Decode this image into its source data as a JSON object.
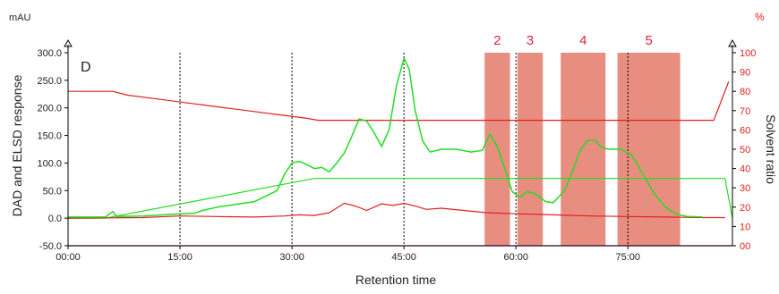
{
  "chart_data": {
    "type": "line",
    "panel_label": "D",
    "xlabel": "Retention time",
    "ylabel_left": "DAD and ELSD response",
    "ylabel_right": "Solvent ratio",
    "unit_left": "mAU",
    "unit_right": "%",
    "xlim_min": [
      0,
      89
    ],
    "ylim_left": [
      -50,
      300
    ],
    "ylim_right": [
      0,
      100
    ],
    "x_ticks": [
      {
        "min": 0,
        "label": "00:00"
      },
      {
        "min": 15,
        "label": "15:00"
      },
      {
        "min": 30,
        "label": "30:00"
      },
      {
        "min": 45,
        "label": "45:00"
      },
      {
        "min": 60,
        "label": "60:00"
      },
      {
        "min": 75,
        "label": "75:00"
      }
    ],
    "y_left_ticks": [
      {
        "v": 300,
        "label": "300.0"
      },
      {
        "v": 250,
        "label": "250.0"
      },
      {
        "v": 200,
        "label": "200.0"
      },
      {
        "v": 150,
        "label": "150.0"
      },
      {
        "v": 100,
        "label": "100.0"
      },
      {
        "v": 50,
        "label": "50.0"
      },
      {
        "v": 0,
        "label": "0.0"
      },
      {
        "v": -50,
        "label": "-50.0"
      }
    ],
    "y_right_ticks": [
      {
        "v": 100,
        "label": "100"
      },
      {
        "v": 90,
        "label": "90"
      },
      {
        "v": 80,
        "label": "80"
      },
      {
        "v": 70,
        "label": "70"
      },
      {
        "v": 60,
        "label": "60"
      },
      {
        "v": 50,
        "label": "50"
      },
      {
        "v": 40,
        "label": "40"
      },
      {
        "v": 30,
        "label": "30"
      },
      {
        "v": 20,
        "label": "20"
      },
      {
        "v": 10,
        "label": "10"
      },
      {
        "v": 0,
        "label": "00"
      }
    ],
    "vertical_gridlines_min": [
      15,
      30,
      45,
      60,
      75
    ],
    "fractions": [
      {
        "label": "2",
        "start": 55.8,
        "end": 59.2
      },
      {
        "label": "3",
        "start": 60.2,
        "end": 63.6
      },
      {
        "label": "4",
        "start": 66.0,
        "end": 72.0
      },
      {
        "label": "5",
        "start": 73.6,
        "end": 82.0
      }
    ],
    "series": [
      {
        "color": "#e02020",
        "axis": "right",
        "values": [
          [
            0,
            80
          ],
          [
            6,
            80
          ],
          [
            8,
            78
          ],
          [
            12,
            76
          ],
          [
            16,
            74
          ],
          [
            20,
            72
          ],
          [
            24,
            70
          ],
          [
            28,
            68
          ],
          [
            32,
            66
          ],
          [
            33.5,
            65
          ],
          [
            40,
            65
          ],
          [
            60,
            65
          ],
          [
            80,
            65
          ],
          [
            86.5,
            65
          ],
          [
            88.5,
            85
          ]
        ]
      },
      {
        "color": "#22dd22",
        "axis": "left",
        "values": [
          [
            0,
            2
          ],
          [
            5,
            2
          ],
          [
            6,
            12
          ],
          [
            6.5,
            3
          ],
          [
            10,
            4
          ],
          [
            14,
            7
          ],
          [
            17,
            9
          ],
          [
            18,
            14
          ],
          [
            20,
            20
          ],
          [
            22,
            24
          ],
          [
            25,
            30
          ],
          [
            28,
            50
          ],
          [
            29,
            80
          ],
          [
            30,
            100
          ],
          [
            31,
            103
          ],
          [
            32,
            97
          ],
          [
            33,
            90
          ],
          [
            34,
            92
          ],
          [
            35,
            84
          ],
          [
            36,
            100
          ],
          [
            37,
            118
          ],
          [
            38,
            148
          ],
          [
            39,
            180
          ],
          [
            40,
            176
          ],
          [
            41,
            155
          ],
          [
            42,
            130
          ],
          [
            43,
            160
          ],
          [
            44,
            240
          ],
          [
            45,
            290
          ],
          [
            45.7,
            270
          ],
          [
            46.5,
            195
          ],
          [
            47.5,
            140
          ],
          [
            48.5,
            120
          ],
          [
            50,
            125
          ],
          [
            52,
            125
          ],
          [
            54,
            120
          ],
          [
            55.5,
            123
          ],
          [
            56.5,
            152
          ],
          [
            57.5,
            130
          ],
          [
            58.5,
            90
          ],
          [
            59.5,
            48
          ],
          [
            60.5,
            38
          ],
          [
            61.5,
            48
          ],
          [
            62.5,
            45
          ],
          [
            64,
            30
          ],
          [
            65,
            28
          ],
          [
            66.5,
            50
          ],
          [
            67.5,
            82
          ],
          [
            68.5,
            120
          ],
          [
            69.5,
            140
          ],
          [
            70.5,
            142
          ],
          [
            71.5,
            128
          ],
          [
            72.5,
            125
          ],
          [
            74,
            125
          ],
          [
            75.5,
            115
          ],
          [
            77,
            80
          ],
          [
            78.5,
            45
          ],
          [
            80,
            20
          ],
          [
            81.5,
            7
          ],
          [
            83,
            3
          ],
          [
            85,
            2
          ]
        ]
      },
      {
        "color": "#22dd22",
        "axis": "left",
        "values": [
          [
            0,
            0
          ],
          [
            5,
            0
          ],
          [
            33,
            72
          ],
          [
            88,
            72
          ],
          [
            89,
            0
          ]
        ]
      },
      {
        "color": "#e02020",
        "axis": "left",
        "values": [
          [
            0,
            0
          ],
          [
            10,
            1
          ],
          [
            15,
            4
          ],
          [
            20,
            3
          ],
          [
            25,
            2
          ],
          [
            29,
            4
          ],
          [
            31,
            6
          ],
          [
            33,
            5
          ],
          [
            35,
            10
          ],
          [
            37,
            27
          ],
          [
            38.5,
            22
          ],
          [
            40,
            14
          ],
          [
            41,
            20
          ],
          [
            42,
            26
          ],
          [
            43.5,
            23
          ],
          [
            45,
            27
          ],
          [
            46.5,
            22
          ],
          [
            48,
            16
          ],
          [
            50,
            18
          ],
          [
            53,
            14
          ],
          [
            56,
            10
          ],
          [
            60,
            8
          ],
          [
            65,
            6
          ],
          [
            70,
            4
          ],
          [
            75,
            3
          ],
          [
            80,
            2
          ],
          [
            85,
            1
          ],
          [
            88,
            1
          ]
        ]
      },
      {
        "color": "#c000c0",
        "axis": "left",
        "values": [
          [
            0,
            -50
          ],
          [
            89,
            -50
          ]
        ]
      }
    ]
  }
}
